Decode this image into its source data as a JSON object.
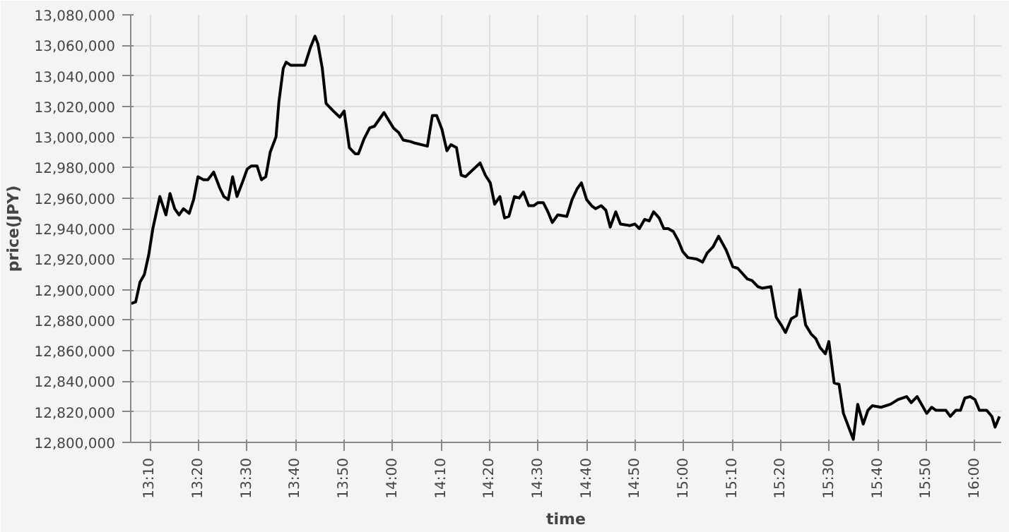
{
  "chart_data": {
    "type": "line",
    "xlabel": "time",
    "ylabel": "price(JPY)",
    "x": [
      13.102,
      13.117,
      13.132,
      13.147,
      13.162,
      13.176,
      13.2,
      13.221,
      13.235,
      13.251,
      13.266,
      13.281,
      13.301,
      13.316,
      13.331,
      13.35,
      13.365,
      13.385,
      13.405,
      13.42,
      13.435,
      13.45,
      13.465,
      13.485,
      13.5,
      13.514,
      13.534,
      13.549,
      13.564,
      13.579,
      13.599,
      13.609,
      13.624,
      13.634,
      13.649,
      13.664,
      13.698,
      13.718,
      13.733,
      13.743,
      13.758,
      13.771,
      13.796,
      13.818,
      13.833,
      13.851,
      13.871,
      13.882,
      13.902,
      13.921,
      13.937,
      13.97,
      14.002,
      14.02,
      14.036,
      14.061,
      14.076,
      14.119,
      14.136,
      14.151,
      14.169,
      14.186,
      14.2,
      14.219,
      14.235,
      14.25,
      14.3,
      14.318,
      14.335,
      14.35,
      14.368,
      14.384,
      14.399,
      14.418,
      14.434,
      14.449,
      14.467,
      14.484,
      14.499,
      14.517,
      14.533,
      14.548,
      14.567,
      14.598,
      14.616,
      14.633,
      14.648,
      14.666,
      14.683,
      14.697,
      14.716,
      14.732,
      14.747,
      14.766,
      14.782,
      14.815,
      14.832,
      14.847,
      14.865,
      14.881,
      14.896,
      14.915,
      14.931,
      14.946,
      14.964,
      14.981,
      14.996,
      15.014,
      15.045,
      15.064,
      15.08,
      15.1,
      15.119,
      15.145,
      15.168,
      15.185,
      15.218,
      15.234,
      15.254,
      15.269,
      15.299,
      15.317,
      15.334,
      15.349,
      15.369,
      15.387,
      15.398,
      15.418,
      15.437,
      15.453,
      15.468,
      15.486,
      15.498,
      15.516,
      15.533,
      15.548,
      15.582,
      15.597,
      15.616,
      15.632,
      15.647,
      15.677,
      15.71,
      15.735,
      15.765,
      15.781,
      15.801,
      15.834,
      15.851,
      15.866,
      15.9,
      15.915,
      15.934,
      15.95,
      15.965,
      15.983,
      16.0,
      16.015,
      16.04,
      16.058,
      16.069,
      16.084
    ],
    "series": [
      {
        "color": "#000000",
        "values": [
          12891000,
          12892000,
          12905000,
          12910000,
          12923000,
          12940000,
          12961000,
          12949000,
          12963000,
          12953000,
          12949000,
          12953000,
          12950000,
          12959000,
          12974000,
          12972000,
          12972000,
          12977000,
          12967000,
          12961000,
          12959000,
          12974000,
          12961000,
          12971000,
          12979000,
          12981000,
          12981000,
          12972000,
          12974000,
          12990000,
          13000000,
          13023000,
          13045000,
          13049000,
          13047000,
          13047000,
          13047000,
          13059000,
          13066000,
          13061000,
          13045000,
          13022000,
          13017000,
          13013000,
          13017000,
          12993000,
          12989000,
          12989000,
          12999000,
          13006000,
          13007000,
          13016000,
          13006000,
          13003000,
          12998000,
          12997000,
          12996000,
          12994000,
          13014000,
          13014000,
          13005000,
          12991000,
          12995000,
          12993000,
          12975000,
          12974000,
          12983000,
          12975000,
          12970000,
          12956000,
          12961000,
          12947000,
          12948000,
          12961000,
          12960000,
          12964000,
          12955000,
          12955000,
          12957000,
          12957000,
          12951000,
          12944000,
          12949000,
          12948000,
          12959000,
          12966000,
          12970000,
          12959000,
          12955000,
          12953000,
          12955000,
          12952000,
          12941000,
          12951000,
          12943000,
          12942000,
          12943000,
          12940000,
          12946000,
          12945000,
          12951000,
          12947000,
          12940000,
          12940000,
          12938000,
          12932000,
          12925000,
          12921000,
          12920000,
          12918000,
          12924000,
          12928000,
          12935000,
          12926000,
          12915000,
          12914000,
          12907000,
          12906000,
          12902000,
          12901000,
          12902000,
          12882000,
          12877000,
          12872000,
          12881000,
          12883000,
          12900000,
          12877000,
          12871000,
          12868000,
          12862000,
          12858000,
          12866000,
          12839000,
          12838000,
          12819000,
          12802000,
          12825000,
          12812000,
          12821000,
          12824000,
          12823000,
          12825000,
          12828000,
          12830000,
          12826000,
          12830000,
          12819000,
          12823000,
          12821000,
          12821000,
          12817000,
          12821000,
          12821000,
          12829000,
          12830000,
          12828000,
          12821000,
          12821000,
          12817000,
          12810000,
          12817000
        ]
      }
    ],
    "xlim": [
      13.1,
      16.09
    ],
    "xticks": [
      {
        "value": 13.16667,
        "label": "13:10"
      },
      {
        "value": 13.33333,
        "label": "13:20"
      },
      {
        "value": 13.5,
        "label": "13:30"
      },
      {
        "value": 13.66667,
        "label": "13:40"
      },
      {
        "value": 13.83333,
        "label": "13:50"
      },
      {
        "value": 14.0,
        "label": "14:00"
      },
      {
        "value": 14.16667,
        "label": "14:10"
      },
      {
        "value": 14.33333,
        "label": "14:20"
      },
      {
        "value": 14.5,
        "label": "14:30"
      },
      {
        "value": 14.66667,
        "label": "14:40"
      },
      {
        "value": 14.83333,
        "label": "14:50"
      },
      {
        "value": 15.0,
        "label": "15:00"
      },
      {
        "value": 15.16667,
        "label": "15:10"
      },
      {
        "value": 15.33333,
        "label": "15:20"
      },
      {
        "value": 15.5,
        "label": "15:30"
      },
      {
        "value": 15.66667,
        "label": "15:40"
      },
      {
        "value": 15.83333,
        "label": "15:50"
      },
      {
        "value": 16.0,
        "label": "16:00"
      }
    ],
    "ylim": [
      12800000,
      13080000
    ],
    "yticks": [
      {
        "value": 12800000,
        "label": "12,800,000"
      },
      {
        "value": 12820000,
        "label": "12,820,000"
      },
      {
        "value": 12840000,
        "label": "12,840,000"
      },
      {
        "value": 12860000,
        "label": "12,860,000"
      },
      {
        "value": 12880000,
        "label": "12,880,000"
      },
      {
        "value": 12900000,
        "label": "12,900,000"
      },
      {
        "value": 12920000,
        "label": "12,920,000"
      },
      {
        "value": 12940000,
        "label": "12,940,000"
      },
      {
        "value": 12960000,
        "label": "12,960,000"
      },
      {
        "value": 12980000,
        "label": "12,980,000"
      },
      {
        "value": 13000000,
        "label": "13,000,000"
      },
      {
        "value": 13020000,
        "label": "13,020,000"
      },
      {
        "value": 13040000,
        "label": "13,040,000"
      },
      {
        "value": 13060000,
        "label": "13,060,000"
      },
      {
        "value": 13080000,
        "label": "13,080,000"
      }
    ],
    "grid": true,
    "marker": "none",
    "line_style": "solid"
  }
}
